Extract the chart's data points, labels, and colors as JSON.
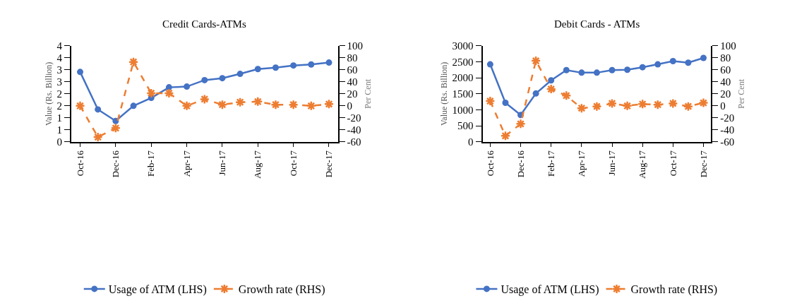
{
  "chart_data": [
    {
      "type": "line",
      "title": "Credit Cards-ATMs",
      "ylabel": "Value (Rs. Billion)",
      "y2label": "Per Cent",
      "categories": [
        "Oct-16",
        null,
        "Dec-16",
        null,
        "Feb-17",
        null,
        "Apr-17",
        null,
        "Jun-17",
        null,
        "Aug-17",
        null,
        "Oct-17",
        null,
        "Dec-17"
      ],
      "series": [
        {
          "name": "Usage of ATM (LHS)",
          "color": "#4472c4",
          "marker": "circle",
          "line_style": "solid",
          "values": [
            2.91,
            1.35,
            0.87,
            1.5,
            1.83,
            2.27,
            2.3,
            2.57,
            2.65,
            2.83,
            3.03,
            3.09,
            3.18,
            3.22,
            3.3
          ]
        },
        {
          "name": "Growth rate (RHS)",
          "color": "#ed7d31",
          "marker": "cross",
          "line_style": "dashed",
          "axis": "y2",
          "values": [
            0,
            -52,
            -37,
            73,
            21,
            21,
            0,
            11,
            2,
            6,
            7,
            2,
            2,
            0,
            3
          ]
        }
      ],
      "ylim": [
        0,
        4
      ],
      "yticks": [
        0,
        {
          "value": 0.5,
          "label": "1"
        },
        1,
        {
          "value": 1.5,
          "label": "2"
        },
        2,
        {
          "value": 2.5,
          "label": "3"
        },
        3,
        {
          "value": 3.5,
          "label": "4"
        },
        4
      ],
      "y2lim": [
        -60,
        100
      ],
      "y2ticks": [
        -60,
        -40,
        -20,
        0,
        20,
        40,
        60,
        80,
        100
      ],
      "legend": "bottom"
    },
    {
      "type": "line",
      "title": "Debit Cards - ATMs",
      "ylabel": "Value (Rs. Billion)",
      "y2label": "Per Cent",
      "categories": [
        "Oct-16",
        null,
        "Dec-16",
        null,
        "Feb-17",
        null,
        "Apr-17",
        null,
        "Jun-17",
        null,
        "Aug-17",
        null,
        "Oct-17",
        null,
        "Dec-17"
      ],
      "series": [
        {
          "name": "Usage of ATM (LHS)",
          "color": "#4472c4",
          "marker": "circle",
          "line_style": "solid",
          "values": [
            2420,
            1220,
            840,
            1510,
            1920,
            2240,
            2160,
            2160,
            2240,
            2250,
            2330,
            2420,
            2520,
            2470,
            2620
          ]
        },
        {
          "name": "Growth rate (RHS)",
          "color": "#ed7d31",
          "marker": "cross",
          "line_style": "dashed",
          "axis": "y2",
          "values": [
            8,
            -50,
            -30,
            75,
            28,
            17,
            -4,
            -1,
            4,
            0,
            3,
            2,
            4,
            -1,
            5
          ]
        }
      ],
      "ylim": [
        0,
        3000
      ],
      "yticks": [
        0,
        500,
        1000,
        1500,
        2000,
        2500,
        3000
      ],
      "y2lim": [
        -60,
        100
      ],
      "y2ticks": [
        -60,
        -40,
        -20,
        0,
        20,
        40,
        60,
        80,
        100
      ],
      "legend": "bottom"
    }
  ]
}
